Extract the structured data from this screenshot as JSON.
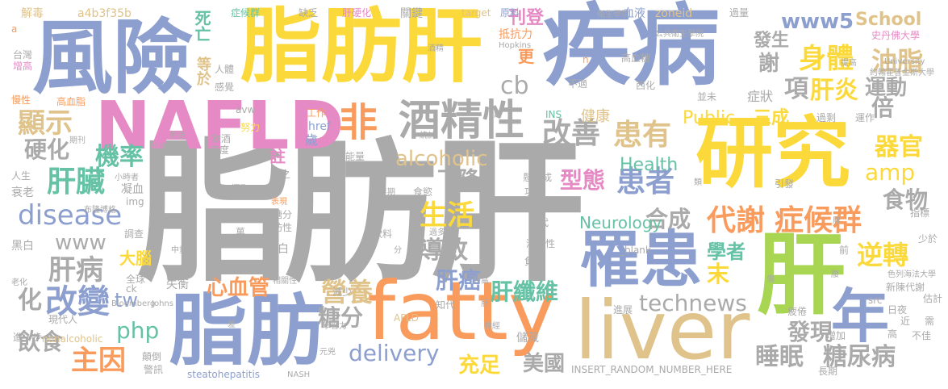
{
  "colors": {
    "gray": "#aaaaaa",
    "blue": "#8c9fcf",
    "yellow": "#fcd93a",
    "orange": "#f99b5c",
    "pink": "#e58ac4",
    "green": "#66c2a5",
    "tan": "#dfc38a",
    "lime": "#a8d653"
  },
  "words": {
    "zhifanggan_main": "脂肪肝",
    "zhifanggan_top": "脂肪肝",
    "jibing": "疾病",
    "fengxian": "風險",
    "nafld": "NAFLD",
    "yanjiu": "研究",
    "fatty": "fatty",
    "liver": "liver",
    "zhifang": "脂肪",
    "gan": "肝",
    "nian": "年",
    "luohuan": "罹患",
    "fei": "非",
    "jiujingxing": "酒精性",
    "daixie": "代謝",
    "zhenghouqun": "症候群",
    "shenti": "身體",
    "youzhi": "油脂",
    "www5": "www5",
    "school": "School",
    "faxing": "發生",
    "xie": "謝",
    "xiang": "項",
    "ganyan": "肝炎",
    "yundong": "運動",
    "bei": "倍",
    "gaishan": "改善",
    "huanyou": "患有",
    "alcoholic": "alcoholic",
    "cb": "cb",
    "xianshi": "顯示",
    "yinghua": "硬化",
    "jilv": "機率",
    "ganzang": "肝臟",
    "disease": "disease",
    "www": "www",
    "ganbing": "肝病",
    "hua": "化",
    "gaibian": "改變",
    "tw": "tw",
    "php": "php",
    "yinshi": "飲食",
    "zhuyin": "主因",
    "xiajiang": "下降",
    "shenghuo": "生活",
    "daozhi": "導致",
    "ganai": "肝癌",
    "yingyang": "營養",
    "tangfen": "糖分",
    "delivery": "delivery",
    "chongzu": "充足",
    "meiguo": "美國",
    "ganxianwei": "肝纖維",
    "xinxueguan": "心血管",
    "technews": "technews",
    "faxian": "發現",
    "shuimian": "睡眠",
    "tangniaobing": "糖尿病",
    "nixuan": "逆轉",
    "xuezhe": "學者",
    "mo": "末",
    "huanzhe": "患者",
    "xingtai": "型態",
    "hecheng": "合成",
    "health": "Health",
    "public": "Public",
    "sancheng": "三成",
    "qiguan": "器官",
    "amp": "amp",
    "shiwu": "食物",
    "neurology": "Neurology",
    "sihang": "死亡",
    "dengyu": "等於",
    "kandeng": "刊登",
    "geng": "更",
    "zhu": "註",
    "dana": "大腦",
    "jiejue": "解毒",
    "a": "a",
    "hash": "a4b3f35b",
    "zhenghouqun_small": "症候群",
    "quefa": "缺乏",
    "ganyinghua": "肝硬化",
    "guanjian": "關鍵",
    "target": "target",
    "yuanliao": "原料",
    "xueye": "血液",
    "zoneid": "zoneid",
    "guoliang": "過量",
    "dikangli": "抵抗力",
    "jiankang": "健康",
    "zhengzhuang": "症狀",
    "n": "n",
    "gaoxuetang": "高血糖",
    "taiwan": "台灣",
    "zengaogao": "增高",
    "renmai": "人體",
    "ganzhen": "感覺",
    "manxing": "慢性",
    "gaoxuezhi": "高血脂",
    "avw": "avw",
    "gongzuo": "工作",
    "href": "href",
    "sui": "歲",
    "gongneng": "功能",
    "rugan": "如代",
    "shiyu": "食慾",
    "shuaijiao": "衰老",
    "ningxue": "凝血",
    "img": "img",
    "heibai": "黑白",
    "quanqiu": "全球",
    "ck": "ck",
    "xianshixian": "現代人",
    "shiheng": "失衡",
    "laohua": "老化",
    "jinyibu": "進一步",
    "nonalcoholic": "nonalcoholic",
    "steatohepatitis": "steatohepatitis",
    "nash": "NASH",
    "insert": "INSERT_RANDOM_NUMBER_HERE",
    "blank": "_blank",
    "afld": "AFLD",
    "fuluan": "負擔",
    "chujie": "儲藏",
    "jiujingxing_small": "酒精性",
    "jinzhan": "進展",
    "pilao": "疲倦",
    "changqi": "長期",
    "zengjia": "增加",
    "bujia": "不佳",
    "xu": "需",
    "jin": "近",
    "gao": "高",
    "rijie": "日夜",
    "guji": "估計",
    "src": "src",
    "xinchendaixie": "新陳代謝",
    "ganyou": "肝",
    "jianshao": "減少",
    "zhidao": "知代",
    "xuebaoshao": "過多",
    "yinliao": "飲料",
    "gaotangfen": "高糖分",
    "zhifangxing": "脂肪性",
    "danbai": "蛋白",
    "wan": "萬",
    "sheqi": "攝取",
    "yinjiu": "飲酒",
    "gaodu": "高度",
    "nuli": "努力",
    "jishi": "寄送",
    "gongong": "公共",
    "renshen": "人生",
    "xiaoshizhe": "小時者",
    "buguan": "布隆博格",
    "diaocha": "調查",
    "ins": "INS",
    "hopkins": "Hopkins",
    "jiujian": "酒精",
    "shiyu2": "史丹佛大學",
    "gonggongweisheng": "公共衛生學院",
    "weisheng": "衛生學院",
    "university": "University",
    "yuehan": "約翰霍普金斯大學",
    "tigao": "提高",
    "binglun": "並未",
    "xihua": "西化",
    "butong": "不適",
    "guoshang": "過剩",
    "yunzuo": "運作",
    "yinfa": "引發",
    "lei": "類",
    "zhibiao": "指標",
    "shaoyu": "少於",
    "qian": "前",
    "pang": "胖",
    "yao": "腰",
    "shang": "傷",
    "selie": "色列海法大學",
    "shengao": "升高",
    "zhongdu": "中重度",
    "bloomberg": "Bloomberg",
    "johns": "Johns",
    "xiangguanxing": "相關性",
    "huguo": "懸化成",
    "zaoqi": "早期",
    "chao": "超",
    "jingshen": "神經",
    "tongji": "統計",
    "qixing": "期刊",
    "yuanbi": "元兇",
    "jingzhong": "警訊",
    "fandao": "顛倒",
    "xuehui": "學習力",
    "jiu": "酌",
    "fen": "分",
    "cha": "差",
    "suizhi": "隨之",
    "nengliang": "能量",
    "biaoxian": "表現"
  }
}
